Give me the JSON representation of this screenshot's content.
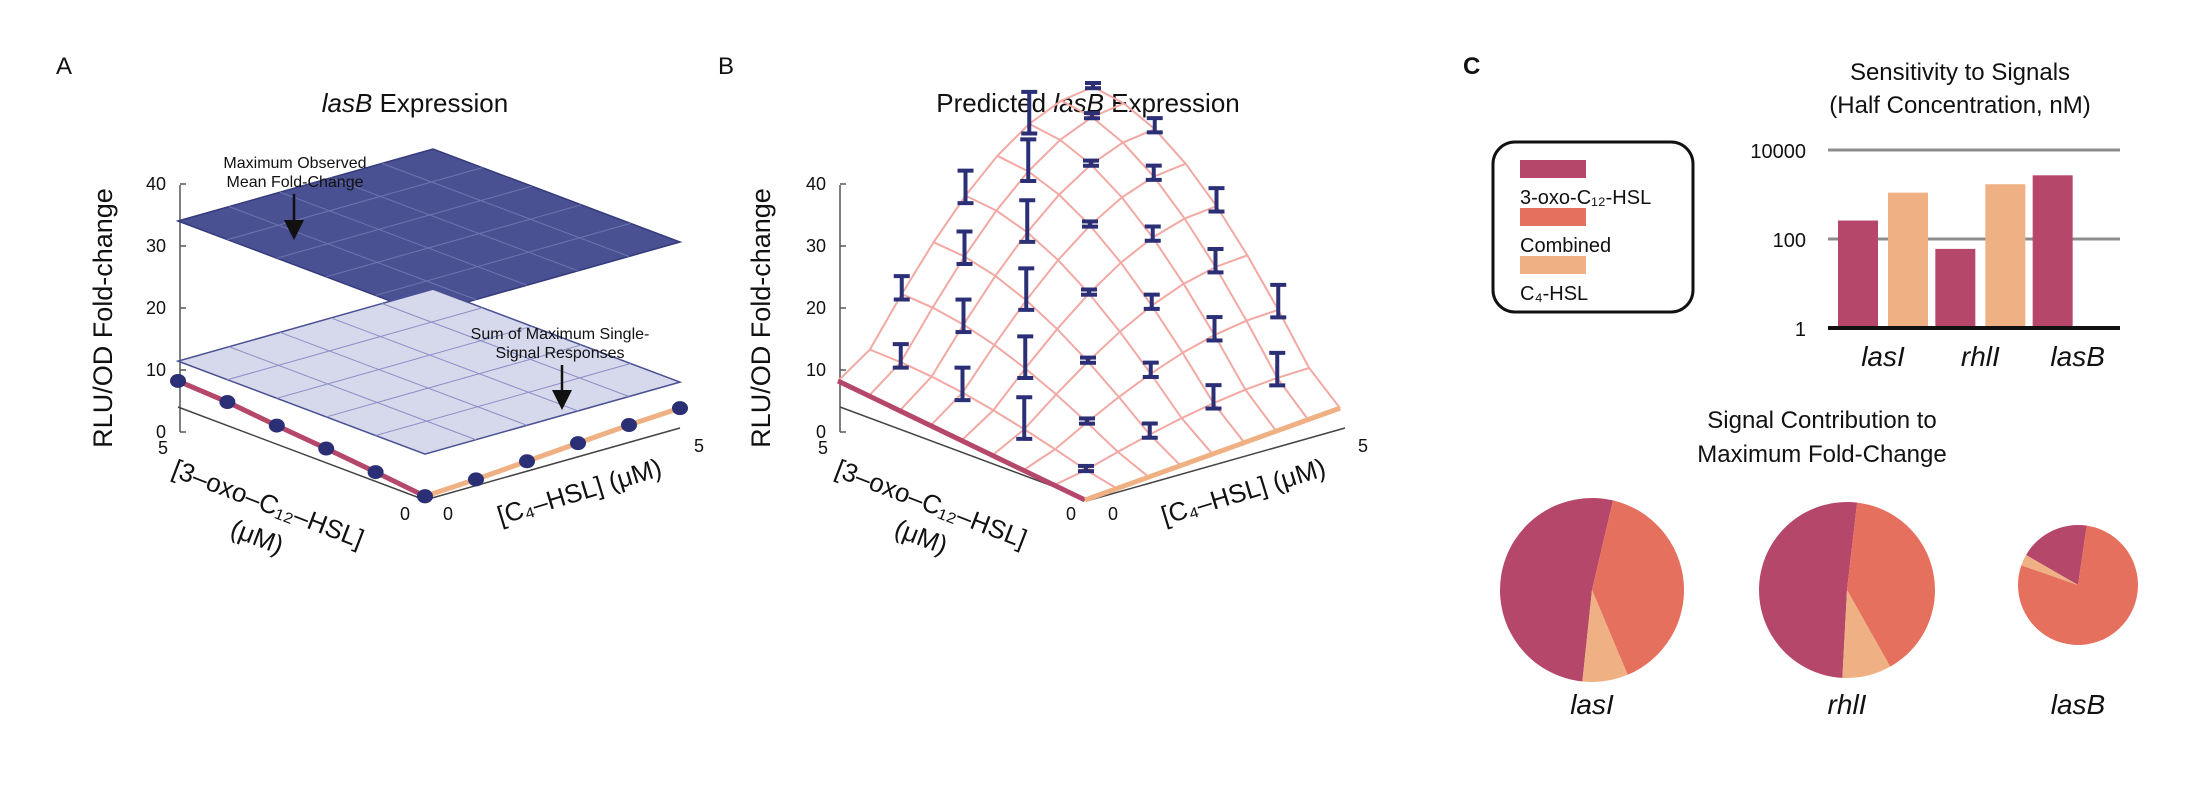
{
  "panel_a": {
    "letter": "A",
    "title_italic": "lasB",
    "title_rest": " Expression",
    "ylabel": "RLU/OD Fold-change",
    "yticks": [
      "0",
      "10",
      "20",
      "30",
      "40"
    ],
    "x_left_label_1": "[3–oxo–C₁₂–HSL]",
    "x_left_label_2": "(μM)",
    "x_right_label": "[C₄–HSL] (μM)",
    "left_ticks": [
      "5",
      "0"
    ],
    "right_ticks": [
      "0",
      "5"
    ],
    "annot_top_1": "Maximum Observed",
    "annot_top_2": "Mean Fold-Change",
    "annot_bottom_1": "Sum of Maximum Single-",
    "annot_bottom_2": "Signal Responses"
  },
  "panel_b": {
    "letter": "B",
    "title_rest_pre": "Predicted ",
    "title_italic": "lasB",
    "title_rest": " Expression",
    "ylabel": "RLU/OD Fold-change",
    "yticks": [
      "0",
      "10",
      "20",
      "30",
      "40"
    ],
    "x_left_label_1": "[3–oxo–C₁₂–HSL]",
    "x_left_label_2": "(μM)",
    "x_right_label": "[C₄–HSL] (μM)",
    "left_ticks": [
      "5",
      "0"
    ],
    "right_ticks": [
      "0",
      "5"
    ]
  },
  "panel_c": {
    "letter": "C",
    "legend": [
      {
        "label": "3-oxo-C₁₂-HSL",
        "color": "#b5476a"
      },
      {
        "label": "Combined",
        "color": "#e6705e"
      },
      {
        "label": "C₄-HSL",
        "color": "#efb183"
      }
    ],
    "bar_title_1": "Sensitivity to Signals",
    "bar_title_2": "(Half Concentration, nM)",
    "pie_title_1": "Signal Contribution to",
    "pie_title_2": "Maximum Fold-Change",
    "pie_labels": [
      "lasI",
      "rhlI",
      "lasB"
    ]
  },
  "colors": {
    "oxo": "#b5476a",
    "combined": "#e6705e",
    "c4": "#efb183",
    "navy": "#2b2f75",
    "plane_top": "#4a5192",
    "plane_bottom": "#d6d8ec",
    "grid_b": "#f2a9a3"
  },
  "chart_data": [
    {
      "type": "bar",
      "title": "Sensitivity to Signals (Half Concentration, nM)",
      "categories": [
        "lasI",
        "rhlI",
        "lasB"
      ],
      "yscale": "log",
      "ylim": [
        1,
        10000
      ],
      "yticks": [
        "1",
        "100",
        "10000"
      ],
      "series": [
        {
          "name": "3-oxo-C₁₂-HSL",
          "values": [
            260,
            60,
            2700
          ]
        },
        {
          "name": "C₄-HSL",
          "values": [
            1100,
            1700,
            null
          ]
        }
      ]
    },
    {
      "type": "pie",
      "title": "Signal Contribution to Maximum Fold-Change",
      "pies": [
        {
          "label": "lasI",
          "slices": [
            {
              "name": "3-oxo-C₁₂-HSL",
              "value": 0.52
            },
            {
              "name": "Combined",
              "value": 0.4
            },
            {
              "name": "C₄-HSL",
              "value": 0.08
            }
          ]
        },
        {
          "label": "rhlI",
          "slices": [
            {
              "name": "3-oxo-C₁₂-HSL",
              "value": 0.51
            },
            {
              "name": "Combined",
              "value": 0.4
            },
            {
              "name": "C₄-HSL",
              "value": 0.09
            }
          ]
        },
        {
          "label": "lasB",
          "slices": [
            {
              "name": "3-oxo-C₁₂-HSL",
              "value": 0.19
            },
            {
              "name": "Combined",
              "value": 0.78
            },
            {
              "name": "C₄-HSL",
              "value": 0.03
            }
          ]
        }
      ]
    },
    {
      "type": "scatter",
      "title": "lasB Expression",
      "ylim": [
        0,
        40
      ],
      "series": [
        {
          "name": "3-oxo-C₁₂-HSL",
          "x": [
            0,
            1,
            2,
            3,
            4,
            5
          ],
          "y": [
            0.6,
            1.5,
            2.3,
            3.0,
            3.8,
            4.2
          ]
        },
        {
          "name": "C₄-HSL",
          "x": [
            0,
            1,
            2,
            3,
            4,
            5
          ],
          "y": [
            0.6,
            1.0,
            1.6,
            2.2,
            2.8,
            3.2
          ]
        }
      ],
      "planes": [
        {
          "label": "Maximum Observed Mean Fold-Change",
          "z": 30
        },
        {
          "label": "Sum of Maximum Single-Signal Responses",
          "z": 7.4
        }
      ]
    },
    {
      "type": "scatter",
      "title": "Predicted lasB Expression",
      "ylim": [
        0,
        40
      ],
      "xlim": [
        0,
        5
      ],
      "peak_z": 40,
      "series": [
        {
          "name": "3-oxo-C₁₂-HSL",
          "x": [
            0,
            5
          ],
          "y": [
            0,
            4.2
          ]
        },
        {
          "name": "C₄-HSL",
          "x": [
            0,
            5
          ],
          "y": [
            0,
            3.2
          ]
        }
      ]
    }
  ]
}
